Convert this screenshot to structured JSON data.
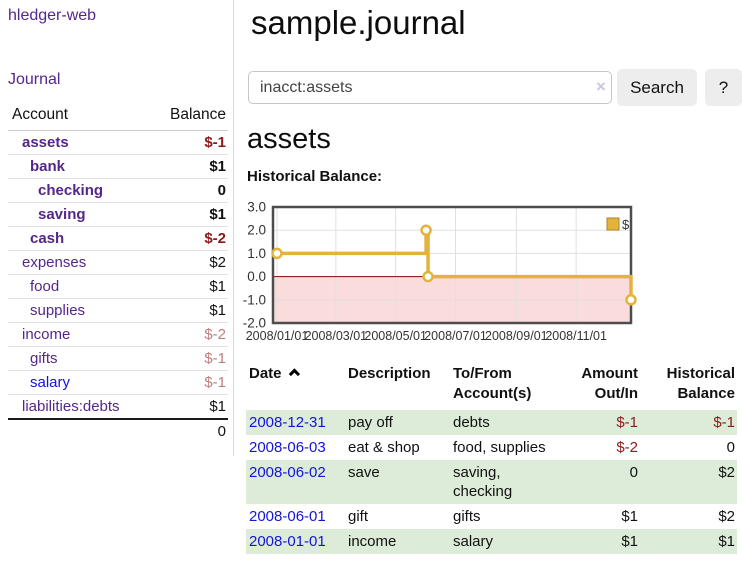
{
  "colors": {
    "link_visited": "#54278b",
    "link_unvisited": "#1414d4",
    "negative_strong": "#8b1a1a",
    "negative_soft": "#bd7f7f",
    "row_green": "#dcecd8"
  },
  "sidebar": {
    "app_title": "hledger-web",
    "journal_link": "Journal",
    "accounts_table": {
      "headers": {
        "account": "Account",
        "balance": "Balance"
      },
      "rows": [
        {
          "name": "assets",
          "indent": 1,
          "bold": true,
          "balance": "$-1",
          "neg": "strong",
          "link_state": "visited"
        },
        {
          "name": "bank",
          "indent": 2,
          "bold": true,
          "balance": "$1",
          "neg": "none",
          "link_state": "visited"
        },
        {
          "name": "checking",
          "indent": 3,
          "bold": true,
          "balance": "0",
          "neg": "none",
          "link_state": "visited"
        },
        {
          "name": "saving",
          "indent": 3,
          "bold": true,
          "balance": "$1",
          "neg": "none",
          "link_state": "visited"
        },
        {
          "name": "cash",
          "indent": 2,
          "bold": true,
          "balance": "$-2",
          "neg": "strong",
          "link_state": "visited"
        },
        {
          "name": "expenses",
          "indent": 1,
          "bold": false,
          "balance": "$2",
          "neg": "none",
          "link_state": "visited"
        },
        {
          "name": "food",
          "indent": 2,
          "bold": false,
          "balance": "$1",
          "neg": "none",
          "link_state": "visited"
        },
        {
          "name": "supplies",
          "indent": 2,
          "bold": false,
          "balance": "$1",
          "neg": "none",
          "link_state": "visited"
        },
        {
          "name": "income",
          "indent": 1,
          "bold": false,
          "balance": "$-2",
          "neg": "soft",
          "link_state": "visited"
        },
        {
          "name": "gifts",
          "indent": 2,
          "bold": false,
          "balance": "$-1",
          "neg": "soft",
          "link_state": "visited"
        },
        {
          "name": "salary",
          "indent": 2,
          "bold": false,
          "balance": "$-1",
          "neg": "soft",
          "link_state": "unvisited"
        },
        {
          "name": "liabilities:debts",
          "indent": 1,
          "bold": false,
          "balance": "$1",
          "neg": "none",
          "link_state": "visited"
        }
      ],
      "total": "0"
    }
  },
  "header": {
    "title": "sample.journal"
  },
  "search": {
    "value": "inacct:assets",
    "clear_icon": "×",
    "search_button": "Search",
    "help_button": "?"
  },
  "account_page": {
    "heading": "assets",
    "chart_title": "Historical Balance:"
  },
  "chart_data": {
    "type": "line",
    "step": true,
    "title": "Historical Balance",
    "series": [
      {
        "name": "$",
        "points": [
          {
            "date": "2008-01-01",
            "value": 1
          },
          {
            "date": "2008-06-01",
            "value": 2
          },
          {
            "date": "2008-06-03",
            "value": 0
          },
          {
            "date": "2008-12-31",
            "value": -1
          }
        ]
      }
    ],
    "x_range": [
      "2008-01-01",
      "2008-12-31"
    ],
    "xticks": [
      "2008/01/01",
      "2008/03/01",
      "2008/05/01",
      "2008/07/01",
      "2008/09/01",
      "2008/11/01"
    ],
    "yticks": [
      3.0,
      2.0,
      1.0,
      0.0,
      -1.0,
      -2.0
    ],
    "ylim": [
      -2,
      3
    ],
    "grid": true,
    "legend": {
      "label": "$",
      "position": "top-right"
    },
    "colors": {
      "line": "#e5b33c",
      "marker_fill": "#ffffff",
      "negative_region": "#fbdcdc",
      "zero_line": "#8b0000",
      "grid": "#e0e0e0",
      "border": "#4d4d4d",
      "legend_swatch": "#e5b33c",
      "legend_swatch_border": "#a8862c"
    }
  },
  "register_table": {
    "headers": {
      "date": "Date",
      "description": "Description",
      "accounts": "To/From Account(s)",
      "amount": "Amount Out/In",
      "balance": "Historical Balance"
    },
    "sort": {
      "column": "date",
      "direction": "asc"
    },
    "rows": [
      {
        "date": "2008-12-31",
        "description": "pay off",
        "accounts": "debts",
        "amount": "$-1",
        "amount_neg": true,
        "balance": "$-1",
        "balance_neg": true,
        "green": true
      },
      {
        "date": "2008-06-03",
        "description": "eat & shop",
        "accounts": "food, supplies",
        "amount": "$-2",
        "amount_neg": true,
        "balance": "0",
        "balance_neg": false,
        "green": false
      },
      {
        "date": "2008-06-02",
        "description": "save",
        "accounts": "saving, checking",
        "amount": "0",
        "amount_neg": false,
        "balance": "$2",
        "balance_neg": false,
        "green": true
      },
      {
        "date": "2008-06-01",
        "description": "gift",
        "accounts": "gifts",
        "amount": "$1",
        "amount_neg": false,
        "balance": "$2",
        "balance_neg": false,
        "green": false
      },
      {
        "date": "2008-01-01",
        "description": "income",
        "accounts": "salary",
        "amount": "$1",
        "amount_neg": false,
        "balance": "$1",
        "balance_neg": false,
        "green": true
      }
    ]
  }
}
